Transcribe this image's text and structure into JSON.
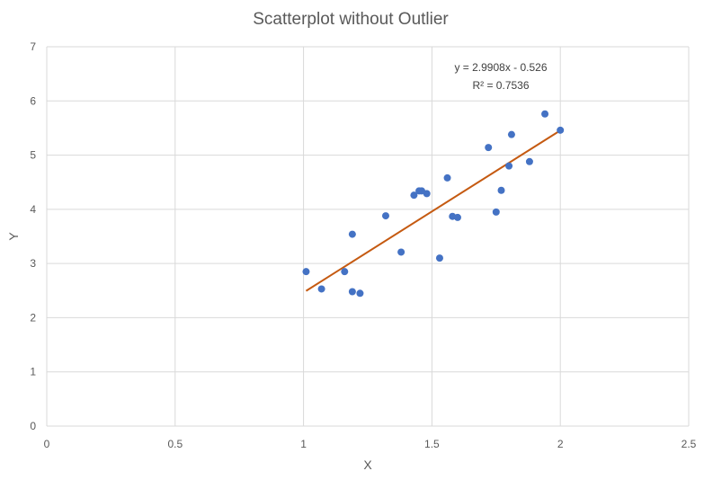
{
  "chart_data": {
    "type": "scatter",
    "title": "Scatterplot without Outlier",
    "xlabel": "X",
    "ylabel": "Y",
    "xlim": [
      0,
      2.5
    ],
    "ylim": [
      0,
      7
    ],
    "x_ticks": [
      "0",
      "0.5",
      "1",
      "1.5",
      "2",
      "2.5"
    ],
    "y_ticks": [
      "0",
      "1",
      "2",
      "3",
      "4",
      "5",
      "6",
      "7"
    ],
    "grid": true,
    "point_color": "#4472C4",
    "trendline_color": "#C55A11",
    "series": [
      {
        "points": [
          [
            1.01,
            2.85
          ],
          [
            1.07,
            2.53
          ],
          [
            1.16,
            2.85
          ],
          [
            1.19,
            3.54
          ],
          [
            1.19,
            2.48
          ],
          [
            1.22,
            2.45
          ],
          [
            1.32,
            3.88
          ],
          [
            1.38,
            3.21
          ],
          [
            1.43,
            4.26
          ],
          [
            1.45,
            4.34
          ],
          [
            1.46,
            4.34
          ],
          [
            1.48,
            4.29
          ],
          [
            1.53,
            3.1
          ],
          [
            1.56,
            4.58
          ],
          [
            1.58,
            3.87
          ],
          [
            1.6,
            3.85
          ],
          [
            1.72,
            5.14
          ],
          [
            1.75,
            3.95
          ],
          [
            1.77,
            4.35
          ],
          [
            1.8,
            4.8
          ],
          [
            1.81,
            5.38
          ],
          [
            1.88,
            4.88
          ],
          [
            1.94,
            5.76
          ],
          [
            2.0,
            5.46
          ]
        ]
      }
    ],
    "trendline": {
      "slope": 2.9908,
      "intercept": -0.526,
      "x_range": [
        1.01,
        2.0
      ],
      "equation_label": "y = 2.9908x - 0.526",
      "r2_label": "R² = 0.7536"
    }
  }
}
